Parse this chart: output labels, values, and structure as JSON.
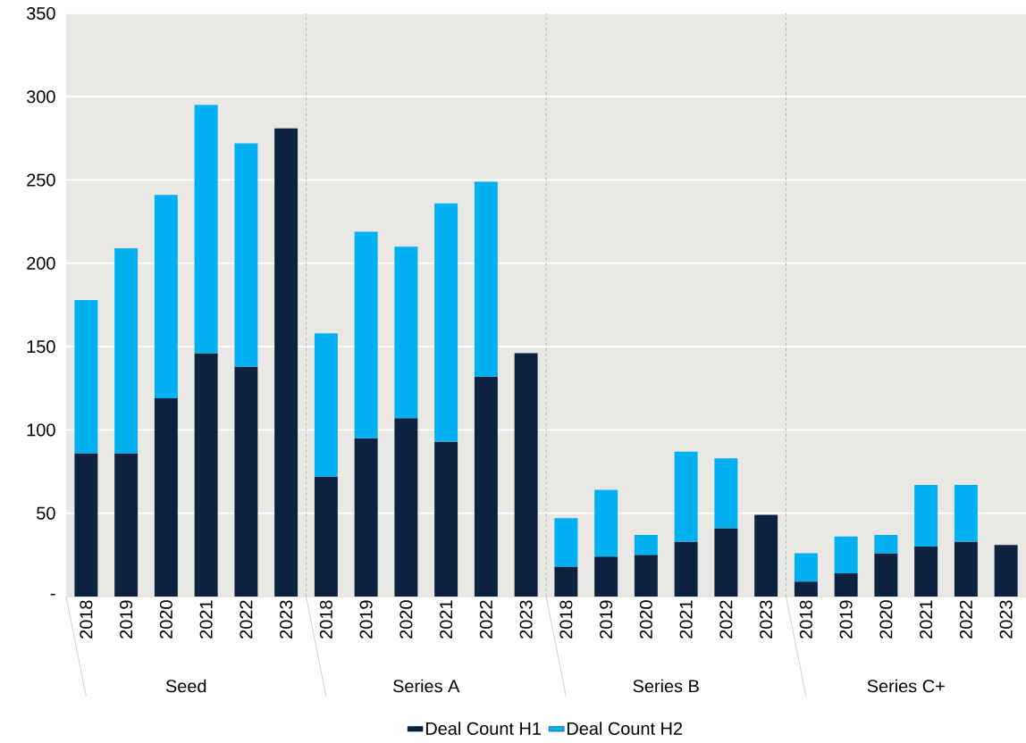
{
  "chart_data": {
    "type": "bar",
    "stacked": true,
    "categories": [
      "2018",
      "2019",
      "2020",
      "2021",
      "2022",
      "2023",
      "2018",
      "2019",
      "2020",
      "2021",
      "2022",
      "2023",
      "2018",
      "2019",
      "2020",
      "2021",
      "2022",
      "2023",
      "2018",
      "2019",
      "2020",
      "2021",
      "2022",
      "2023"
    ],
    "series": [
      {
        "name": "Deal Count H1",
        "color": "#0d2240",
        "values": [
          86,
          86,
          119,
          146,
          138,
          281,
          72,
          95,
          107,
          93,
          132,
          146,
          18,
          24,
          25,
          33,
          41,
          49,
          9,
          14,
          26,
          30,
          33,
          31
        ]
      },
      {
        "name": "Deal Count H2",
        "color": "#00b0f0",
        "values": [
          92,
          123,
          122,
          149,
          134,
          null,
          86,
          124,
          103,
          143,
          117,
          null,
          29,
          40,
          12,
          54,
          42,
          null,
          17,
          22,
          11,
          37,
          34,
          null
        ]
      }
    ],
    "annotations": [
      "Seed",
      "Series A",
      "Series B",
      "Series C+"
    ],
    "ylim": [
      0,
      350
    ],
    "yticks": [
      {
        "value": 0,
        "label": "-"
      },
      50,
      100,
      150,
      200,
      250,
      300,
      350
    ],
    "grid": "y",
    "legend": "bottom"
  }
}
